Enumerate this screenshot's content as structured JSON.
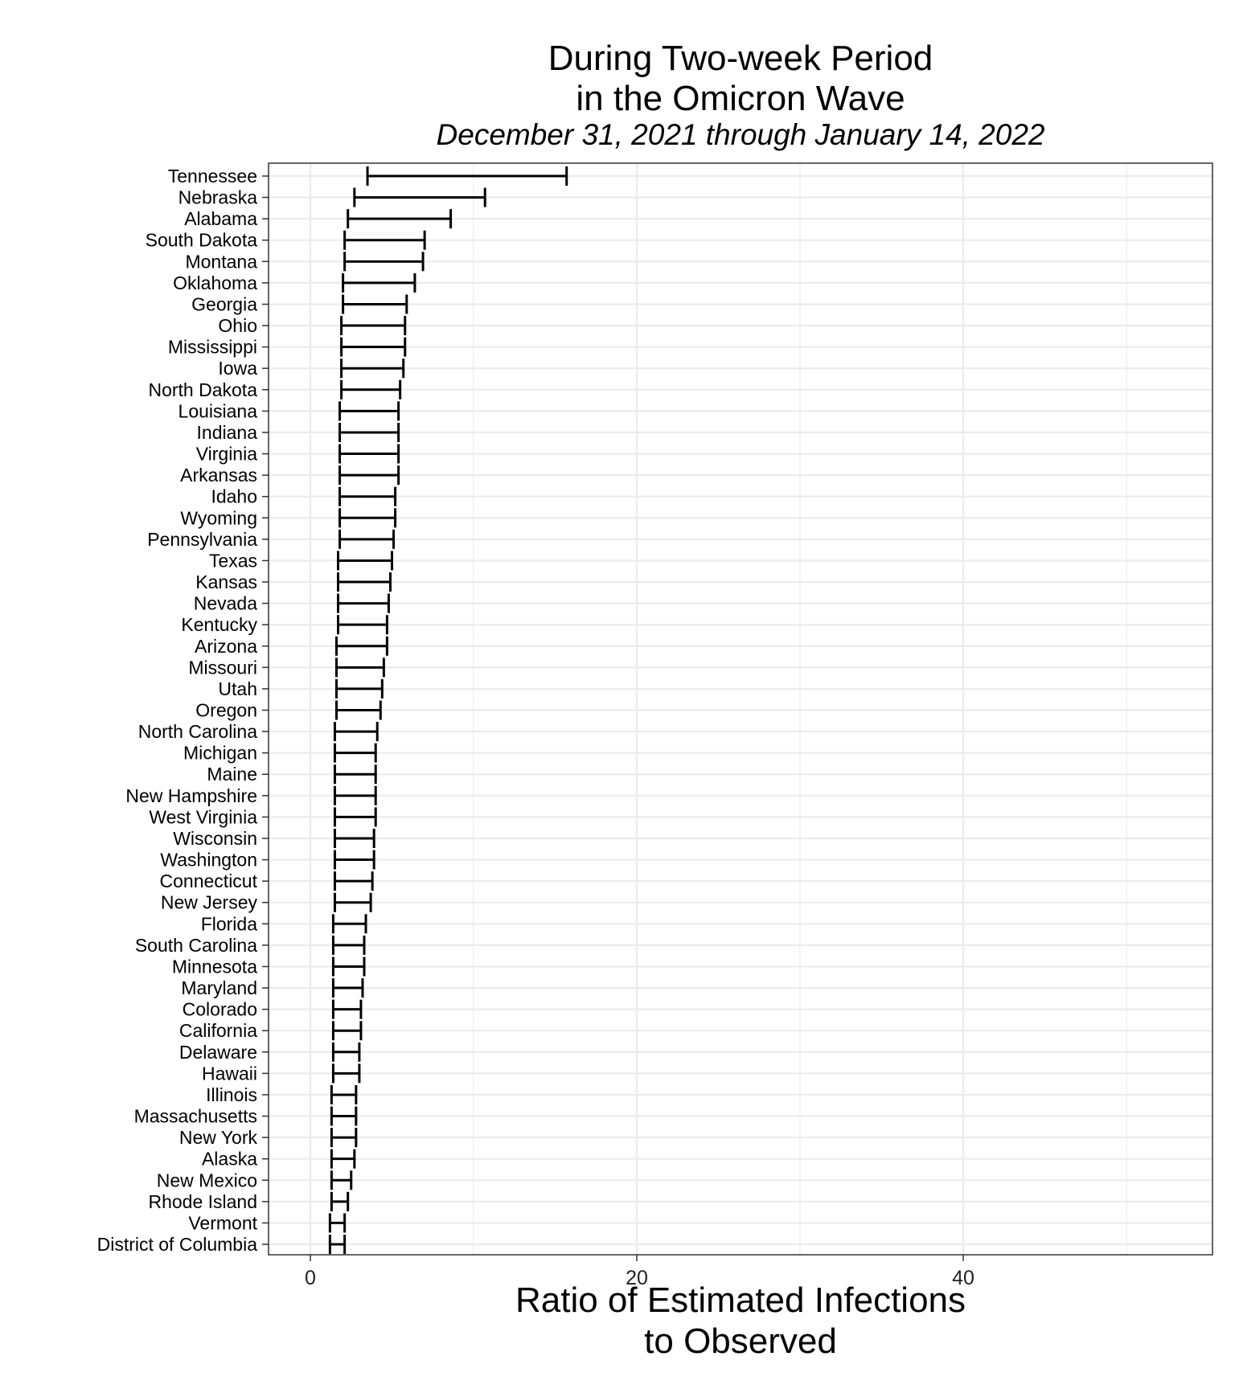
{
  "title_line1": "During Two-week Period",
  "title_line2": "in the Omicron Wave",
  "subtitle": "December 31, 2021 through January 14, 2022",
  "xlabel_line1": "Ratio of Estimated Infections",
  "xlabel_line2": "to Observed",
  "chart_data": {
    "type": "errorbar",
    "title": "During Two-week Period in the Omicron Wave",
    "subtitle": "December 31, 2021 through January 14, 2022",
    "xlabel": "Ratio of Estimated Infections to Observed",
    "ylabel": "",
    "xlim": [
      -2.5,
      55.3
    ],
    "xticks": [
      0,
      20,
      40
    ],
    "grid": true,
    "series": [
      {
        "categories": [
          "Tennessee",
          "Nebraska",
          "Alabama",
          "South Dakota",
          "Montana",
          "Oklahoma",
          "Georgia",
          "Ohio",
          "Mississippi",
          "Iowa",
          "North Dakota",
          "Louisiana",
          "Indiana",
          "Virginia",
          "Arkansas",
          "Idaho",
          "Wyoming",
          "Pennsylvania",
          "Texas",
          "Kansas",
          "Nevada",
          "Kentucky",
          "Arizona",
          "Missouri",
          "Utah",
          "Oregon",
          "North Carolina",
          "Michigan",
          "Maine",
          "New Hampshire",
          "West Virginia",
          "Wisconsin",
          "Washington",
          "Connecticut",
          "New Jersey",
          "Florida",
          "South Carolina",
          "Minnesota",
          "Maryland",
          "Colorado",
          "California",
          "Delaware",
          "Hawaii",
          "Illinois",
          "Massachusetts",
          "New York",
          "Alaska",
          "New Mexico",
          "Rhode Island",
          "Vermont",
          "District of Columbia"
        ],
        "lower": [
          3.5,
          2.7,
          2.3,
          2.1,
          2.1,
          2.0,
          2.0,
          1.9,
          1.9,
          1.9,
          1.9,
          1.8,
          1.8,
          1.8,
          1.8,
          1.8,
          1.8,
          1.8,
          1.7,
          1.7,
          1.7,
          1.7,
          1.6,
          1.6,
          1.6,
          1.6,
          1.5,
          1.5,
          1.5,
          1.5,
          1.5,
          1.5,
          1.5,
          1.5,
          1.5,
          1.4,
          1.4,
          1.4,
          1.4,
          1.4,
          1.4,
          1.4,
          1.4,
          1.3,
          1.3,
          1.3,
          1.3,
          1.3,
          1.3,
          1.2,
          1.2
        ],
        "upper": [
          15.7,
          10.7,
          8.6,
          7.0,
          6.9,
          6.4,
          5.9,
          5.8,
          5.8,
          5.7,
          5.5,
          5.4,
          5.4,
          5.4,
          5.4,
          5.2,
          5.2,
          5.1,
          5.0,
          4.9,
          4.8,
          4.7,
          4.7,
          4.5,
          4.4,
          4.3,
          4.1,
          4.0,
          4.0,
          4.0,
          4.0,
          3.9,
          3.9,
          3.8,
          3.7,
          3.4,
          3.3,
          3.3,
          3.2,
          3.1,
          3.1,
          3.0,
          3.0,
          2.8,
          2.8,
          2.8,
          2.7,
          2.5,
          2.3,
          2.1,
          2.1
        ]
      }
    ]
  }
}
